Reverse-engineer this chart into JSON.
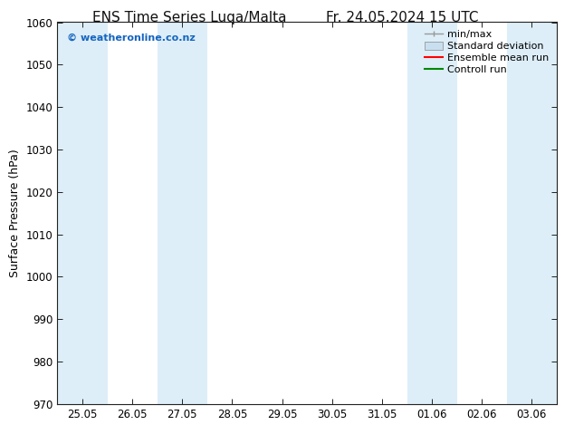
{
  "title_left": "ENS Time Series Luqa/Malta",
  "title_right": "Fr. 24.05.2024 15 UTC",
  "ylabel": "Surface Pressure (hPa)",
  "ylim": [
    970,
    1060
  ],
  "yticks": [
    970,
    980,
    990,
    1000,
    1010,
    1020,
    1030,
    1040,
    1050,
    1060
  ],
  "xlabel_ticks": [
    "25.05",
    "26.05",
    "27.05",
    "28.05",
    "29.05",
    "30.05",
    "31.05",
    "01.06",
    "02.06",
    "03.06"
  ],
  "x_positions": [
    0,
    1,
    2,
    3,
    4,
    5,
    6,
    7,
    8,
    9
  ],
  "x_min": -0.5,
  "x_max": 9.5,
  "shaded_bands": [
    {
      "x_start": -0.5,
      "x_end": 0.5,
      "color": "#ddeef8"
    },
    {
      "x_start": 1.5,
      "x_end": 2.5,
      "color": "#ddeef8"
    },
    {
      "x_start": 6.5,
      "x_end": 7.5,
      "color": "#ddeef8"
    },
    {
      "x_start": 8.5,
      "x_end": 9.5,
      "color": "#ddeef8"
    }
  ],
  "watermark": "© weatheronline.co.nz",
  "watermark_color": "#1565c0",
  "bg_color": "#ffffff",
  "legend_entries": [
    {
      "label": "min/max",
      "color": "#aaaaaa",
      "style": "minmax"
    },
    {
      "label": "Standard deviation",
      "color": "#c8dff0",
      "style": "fill"
    },
    {
      "label": "Ensemble mean run",
      "color": "#ff0000",
      "style": "line"
    },
    {
      "label": "Controll run",
      "color": "#008800",
      "style": "line"
    }
  ],
  "title_fontsize": 11,
  "tick_fontsize": 8.5,
  "ylabel_fontsize": 9,
  "watermark_fontsize": 8,
  "legend_fontsize": 8
}
